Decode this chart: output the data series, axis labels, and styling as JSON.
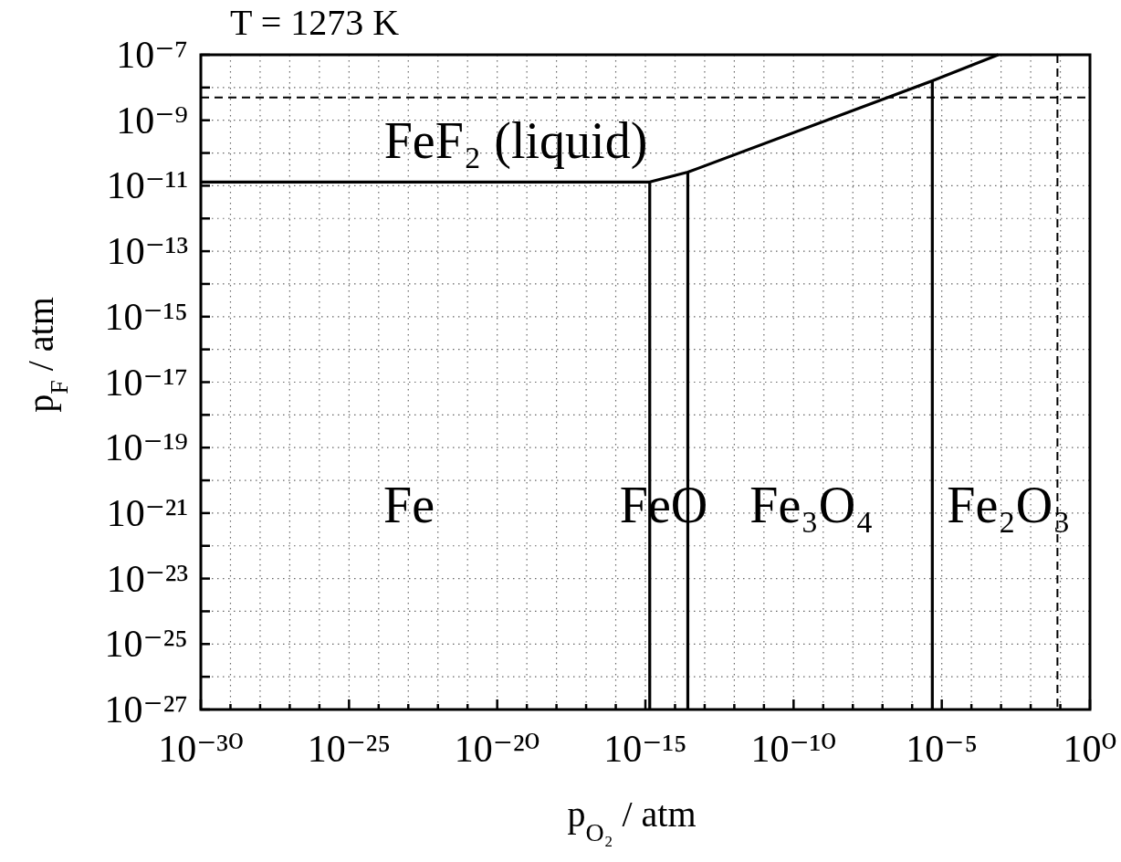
{
  "chart_data": {
    "type": "line",
    "title": "T = 1273 K",
    "xlabel": "p$_{O₂}$ / atm",
    "ylabel": "p$_{F}$ / atm",
    "log": "xy",
    "xlim": [
      1e-30,
      1
    ],
    "ylim": [
      1e-27,
      1e-07
    ],
    "xticks": [
      {
        "value": 1e-30,
        "label": "10⁻³⁰"
      },
      {
        "value": 1e-29,
        "label": null
      },
      {
        "value": 1e-28,
        "label": null
      },
      {
        "value": 1e-27,
        "label": null
      },
      {
        "value": 1e-26,
        "label": null
      },
      {
        "value": 1e-25,
        "label": "10⁻²⁵"
      },
      {
        "value": 1e-24,
        "label": null
      },
      {
        "value": 1e-23,
        "label": null
      },
      {
        "value": 1e-22,
        "label": null
      },
      {
        "value": 1e-21,
        "label": null
      },
      {
        "value": 1e-20,
        "label": "10⁻²⁰"
      },
      {
        "value": 1e-19,
        "label": null
      },
      {
        "value": 1e-18,
        "label": null
      },
      {
        "value": 1e-17,
        "label": null
      },
      {
        "value": 1e-16,
        "label": null
      },
      {
        "value": 1e-15,
        "label": "10⁻¹⁵"
      },
      {
        "value": 1e-14,
        "label": null
      },
      {
        "value": 1e-13,
        "label": null
      },
      {
        "value": 1e-12,
        "label": null
      },
      {
        "value": 1e-11,
        "label": null
      },
      {
        "value": 1e-10,
        "label": "10⁻¹⁰"
      },
      {
        "value": 1e-09,
        "label": null
      },
      {
        "value": 1e-08,
        "label": null
      },
      {
        "value": 1e-07,
        "label": null
      },
      {
        "value": 1e-06,
        "label": null
      },
      {
        "value": 1e-05,
        "label": "10⁻⁵"
      },
      {
        "value": 0.0001,
        "label": null
      },
      {
        "value": 0.001,
        "label": null
      },
      {
        "value": 0.01,
        "label": null
      },
      {
        "value": 0.1,
        "label": null
      },
      {
        "value": 1,
        "label": "10⁰"
      }
    ],
    "yticks": [
      {
        "value": 1e-27,
        "label": "10⁻²⁷"
      },
      {
        "value": 1e-26,
        "label": null
      },
      {
        "value": 1e-25,
        "label": "10⁻²⁵"
      },
      {
        "value": 1e-24,
        "label": null
      },
      {
        "value": 1e-23,
        "label": "10⁻²³"
      },
      {
        "value": 1e-22,
        "label": null
      },
      {
        "value": 1e-21,
        "label": "10⁻²¹"
      },
      {
        "value": 1e-20,
        "label": null
      },
      {
        "value": 1e-19,
        "label": "10⁻¹⁹"
      },
      {
        "value": 1e-18,
        "label": null
      },
      {
        "value": 1e-17,
        "label": "10⁻¹⁷"
      },
      {
        "value": 1e-16,
        "label": null
      },
      {
        "value": 1e-15,
        "label": "10⁻¹⁵"
      },
      {
        "value": 1e-14,
        "label": null
      },
      {
        "value": 1e-13,
        "label": "10⁻¹³"
      },
      {
        "value": 1e-12,
        "label": null
      },
      {
        "value": 1e-11,
        "label": "10⁻¹¹"
      },
      {
        "value": 1e-10,
        "label": null
      },
      {
        "value": 1e-09,
        "label": "10⁻⁹"
      },
      {
        "value": 1e-08,
        "label": null
      },
      {
        "value": 1e-07,
        "label": "10⁻⁷"
      }
    ],
    "grid": true,
    "series": [
      {
        "color": "#000000",
        "x": [
          1e-30,
          1.4e-15,
          2.7e-14,
          4.8e-06,
          0.0008
        ],
        "values": [
          1.3e-11,
          1.3e-11,
          2.6e-11,
          1.6e-08,
          1e-07
        ]
      },
      {
        "color": "#000000",
        "x": [
          1.4e-15,
          1.4e-15
        ],
        "values": [
          1e-27,
          1.3e-11
        ]
      },
      {
        "color": "#000000",
        "x": [
          2.7e-14,
          2.7e-14
        ],
        "values": [
          1e-27,
          2.6e-11
        ]
      },
      {
        "color": "#000000",
        "x": [
          4.8e-06,
          4.8e-06
        ],
        "values": [
          1e-27,
          1.6e-08
        ]
      }
    ],
    "ref_lines": [
      {
        "axis": "y",
        "value": 5e-09,
        "color": "#000000",
        "line_style": "dashed"
      },
      {
        "axis": "x",
        "value": 0.08,
        "color": "#000000",
        "line_style": "dashed"
      }
    ],
    "annotations": [
      "FeF₂ (liquid)",
      "Fe",
      "FeO",
      "Fe₃O₄",
      "Fe₂O₃"
    ]
  }
}
